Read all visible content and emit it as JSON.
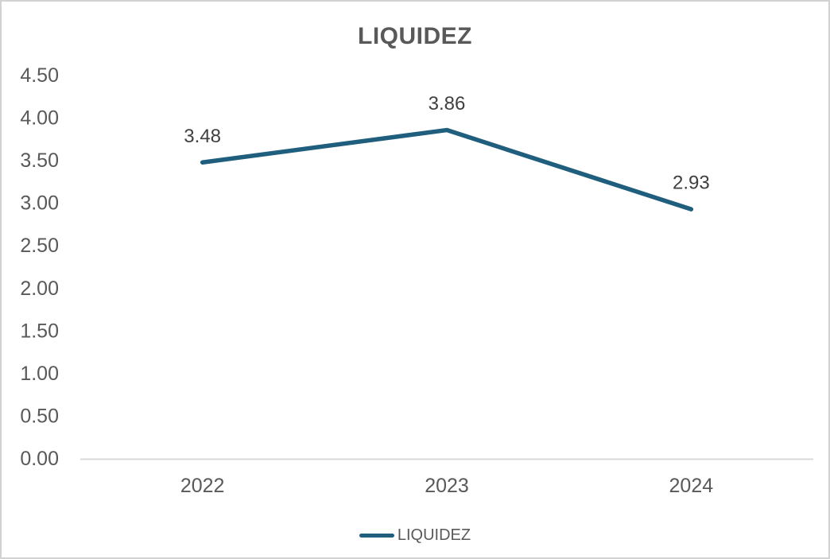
{
  "chart_data": {
    "type": "line",
    "title": "LIQUIDEZ",
    "categories": [
      "2022",
      "2023",
      "2024"
    ],
    "series": [
      {
        "name": "LIQUIDEZ",
        "values": [
          3.48,
          3.86,
          2.93
        ]
      }
    ],
    "data_labels": [
      "3.48",
      "3.86",
      "2.93"
    ],
    "y_ticks": [
      "0.00",
      "0.50",
      "1.00",
      "1.50",
      "2.00",
      "2.50",
      "3.00",
      "3.50",
      "4.00",
      "4.50"
    ],
    "ylim": [
      0,
      4.5
    ],
    "xlabel": "",
    "ylabel": "",
    "grid": false,
    "legend_position": "bottom",
    "colors": {
      "line": "#1F5E7D",
      "title_text": "#595959",
      "axis_text": "#595959",
      "data_label_text": "#404040",
      "axis_line": "#D9D9D9",
      "background": "#FFFFFF"
    }
  }
}
